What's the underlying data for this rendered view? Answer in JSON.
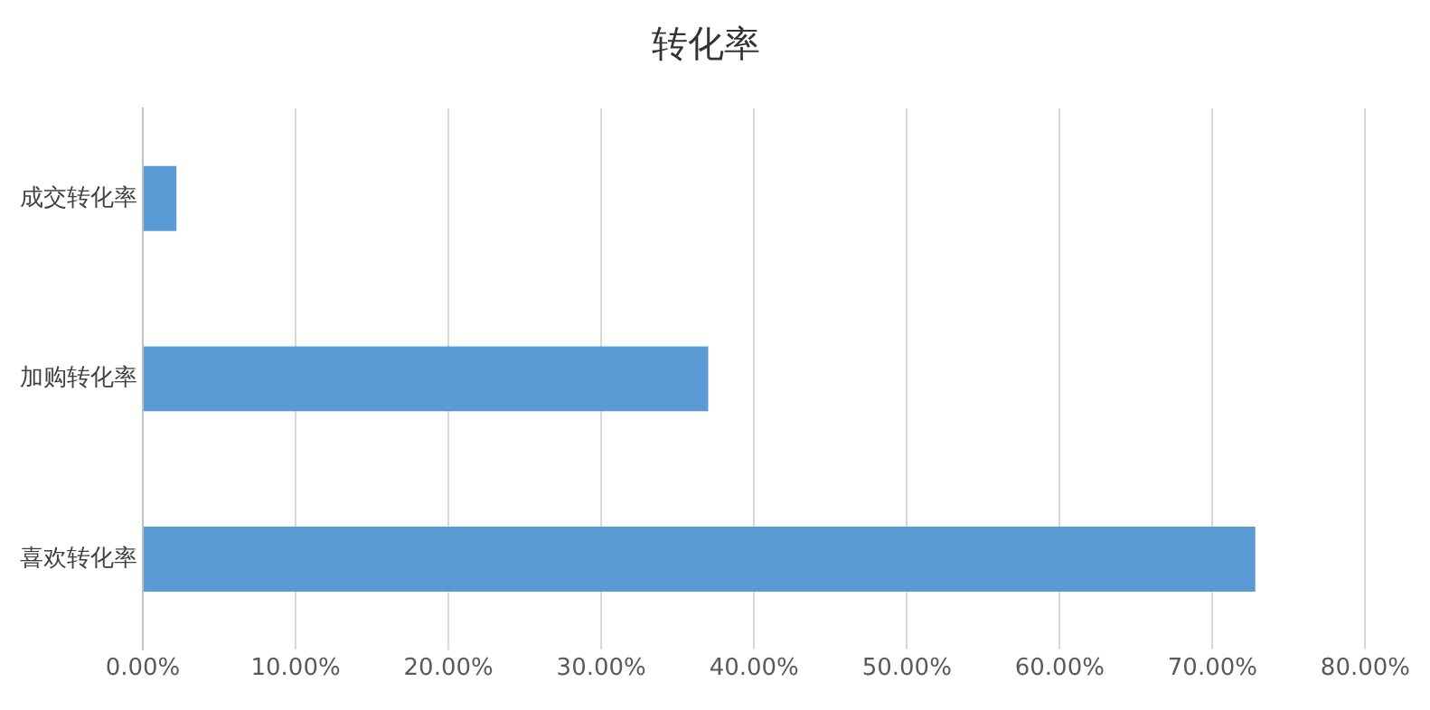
{
  "chart_data": {
    "type": "bar",
    "orientation": "horizontal",
    "title": "转化率",
    "categories": [
      "成交转化率",
      "加购转化率",
      "喜欢转化率"
    ],
    "values": [
      2.2,
      37.0,
      72.8
    ],
    "color": "#5b9bd5",
    "xlim": [
      0,
      80
    ],
    "xticks": [
      {
        "value": 0,
        "label": "0.00%"
      },
      {
        "value": 10,
        "label": "10.00%"
      },
      {
        "value": 20,
        "label": "20.00%"
      },
      {
        "value": 30,
        "label": "30.00%"
      },
      {
        "value": 40,
        "label": "40.00%"
      },
      {
        "value": 50,
        "label": "50.00%"
      },
      {
        "value": 60,
        "label": "60.00%"
      },
      {
        "value": 70,
        "label": "70.00%"
      },
      {
        "value": 80,
        "label": "80.00%"
      }
    ],
    "grid": "x"
  }
}
